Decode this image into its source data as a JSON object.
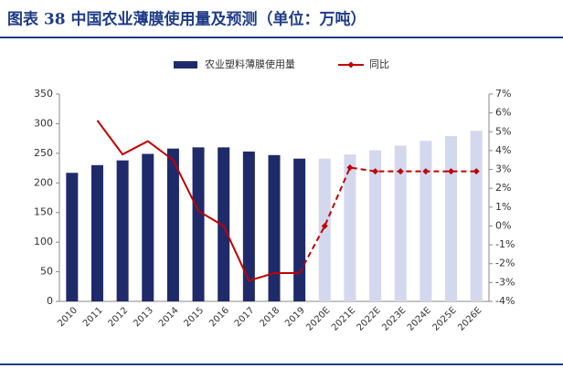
{
  "chart_data": {
    "type": "bar_line",
    "title": "图表 38  中国农业薄膜使用量及预测（单位：万吨）",
    "categories": [
      "2010",
      "2011",
      "2012",
      "2013",
      "2014",
      "2015",
      "2016",
      "2017",
      "2018",
      "2019",
      "2020E",
      "2021E",
      "2022E",
      "2023E",
      "2024E",
      "2025E",
      "2026E"
    ],
    "series": [
      {
        "name": "农业塑料薄膜使用量",
        "type": "bar",
        "color": "#1f2a6b",
        "colors": [
          "#1f2a6b",
          "#1f2a6b",
          "#1f2a6b",
          "#1f2a6b",
          "#1f2a6b",
          "#1f2a6b",
          "#1f2a6b",
          "#1f2a6b",
          "#1f2a6b",
          "#1f2a6b",
          "#d3d8ee",
          "#d3d8ee",
          "#d3d8ee",
          "#d3d8ee",
          "#d3d8ee",
          "#d3d8ee",
          "#d3d8ee"
        ],
        "values": [
          217,
          230,
          238,
          249,
          258,
          260,
          260,
          253,
          247,
          241,
          241,
          248,
          255,
          263,
          271,
          279,
          288
        ]
      },
      {
        "name": "同比",
        "type": "line",
        "axis": "y2",
        "color": "#c00000",
        "styles": [
          "solid",
          "solid",
          "solid",
          "solid",
          "solid",
          "solid",
          "solid",
          "solid",
          "solid",
          "solid",
          "dashed",
          "dashed",
          "dashed",
          "dashed",
          "dashed",
          "dashed",
          "dashed"
        ],
        "values": [
          null,
          5.6,
          3.8,
          4.5,
          3.5,
          0.8,
          0.0,
          -2.9,
          -2.5,
          -2.5,
          0.0,
          3.1,
          2.9,
          2.9,
          2.9,
          2.9,
          2.9
        ]
      }
    ],
    "ylim": [
      0,
      350
    ],
    "yticks": [
      0,
      50,
      100,
      150,
      200,
      250,
      300,
      350
    ],
    "y2lim": [
      -4,
      7
    ],
    "y2ticks": [
      {
        "value": -4,
        "label": "-4%"
      },
      {
        "value": -3,
        "label": "-3%"
      },
      {
        "value": -2,
        "label": "-2%"
      },
      {
        "value": -1,
        "label": "-1%"
      },
      {
        "value": 0,
        "label": "0%"
      },
      {
        "value": 1,
        "label": "1%"
      },
      {
        "value": 2,
        "label": "2%"
      },
      {
        "value": 3,
        "label": "3%"
      },
      {
        "value": 4,
        "label": "4%"
      },
      {
        "value": 5,
        "label": "5%"
      },
      {
        "value": 6,
        "label": "6%"
      },
      {
        "value": 7,
        "label": "7%"
      }
    ],
    "grid": false,
    "legend": "top"
  }
}
